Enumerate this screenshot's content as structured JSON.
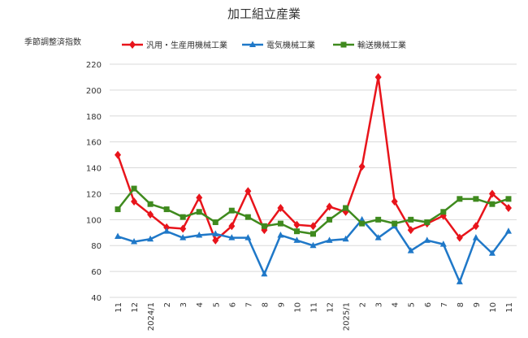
{
  "chart_data": {
    "type": "line",
    "title": "加工組立産業",
    "ylabel": "季節調整済指数",
    "categories": [
      "11",
      "12",
      "2024/1",
      "2",
      "3",
      "4",
      "5",
      "6",
      "7",
      "8",
      "9",
      "10",
      "11",
      "12",
      "2025/1",
      "2",
      "3",
      "4",
      "5",
      "6",
      "7",
      "8",
      "9",
      "10",
      "11"
    ],
    "series": [
      {
        "name": "汎用・生産用機械工業",
        "color": "#e8141b",
        "marker": "diamond",
        "values": [
          150,
          114,
          104,
          94,
          93,
          117,
          84,
          95,
          122,
          92,
          109,
          96,
          95,
          110,
          106,
          141,
          210,
          114,
          92,
          97,
          103,
          86,
          95,
          120,
          109
        ]
      },
      {
        "name": "電気機械工業",
        "color": "#1f78c8",
        "marker": "triangle",
        "values": [
          87,
          83,
          85,
          91,
          86,
          88,
          89,
          86,
          86,
          58,
          88,
          84,
          80,
          84,
          85,
          100,
          86,
          95,
          76,
          84,
          81,
          52,
          86,
          74,
          91
        ]
      },
      {
        "name": "輸送機械工業",
        "color": "#3f8a1e",
        "marker": "square",
        "values": [
          108,
          124,
          112,
          108,
          102,
          106,
          98,
          107,
          102,
          95,
          97,
          91,
          89,
          100,
          109,
          97,
          100,
          97,
          100,
          98,
          106,
          116,
          116,
          112,
          116
        ]
      }
    ],
    "ylim": [
      40,
      220
    ],
    "yticks": [
      40,
      60,
      80,
      100,
      120,
      140,
      160,
      180,
      200,
      220
    ],
    "grid": true
  }
}
